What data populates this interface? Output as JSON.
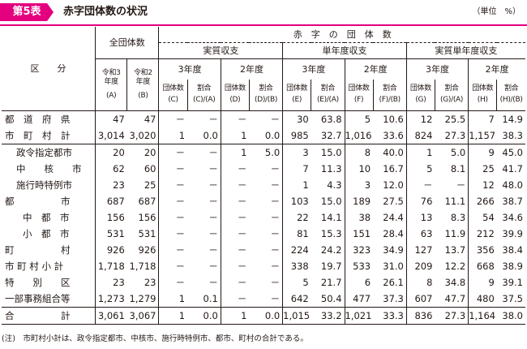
{
  "header": {
    "badge": "第5表",
    "title": "赤字団体数の状況",
    "unit": "（単位　%）"
  },
  "table": {
    "h_kubun": "区　　分",
    "h_all": "全団体数",
    "h_deficit": "赤　字　の　団　体　数",
    "h_jisshitsu": "実質収支",
    "h_tannendo": "単年度収支",
    "h_jisshitsu_tannendo": "実質単年度収支",
    "h_r3": "令和3年度",
    "h_r2": "令和2年度",
    "h_y3": "3年度",
    "h_y2": "2年度",
    "h_count": "団体数",
    "h_ratio": "割合",
    "col_codes": [
      "(A)",
      "(B)",
      "(C)",
      "(C)/(A)",
      "(D)",
      "(D)/(B)",
      "(E)",
      "(E)/(A)",
      "(F)",
      "(F)/(B)",
      "(G)",
      "(G)/(A)",
      "(H)",
      "(H)/(B)"
    ],
    "rows": [
      {
        "label": "都　道　府　県",
        "v": [
          "47",
          "47",
          "－",
          "－",
          "－",
          "－",
          "30",
          "63.8",
          "5",
          "10.6",
          "12",
          "25.5",
          "7",
          "14.9"
        ]
      },
      {
        "label": "市　町　村　計",
        "v": [
          "3,014",
          "3,020",
          "1",
          "0.0",
          "1",
          "0.0",
          "985",
          "32.7",
          "1,016",
          "33.6",
          "824",
          "27.3",
          "1,157",
          "38.3"
        ]
      },
      {
        "label": "政令指定都市",
        "v": [
          "20",
          "20",
          "－",
          "－",
          "1",
          "5.0",
          "3",
          "15.0",
          "8",
          "40.0",
          "1",
          "5.0",
          "9",
          "45.0"
        ]
      },
      {
        "label": "中　　核　　市",
        "v": [
          "62",
          "60",
          "－",
          "－",
          "－",
          "－",
          "7",
          "11.3",
          "10",
          "16.7",
          "5",
          "8.1",
          "25",
          "41.7"
        ]
      },
      {
        "label": "施行時特例市",
        "v": [
          "23",
          "25",
          "－",
          "－",
          "－",
          "－",
          "1",
          "4.3",
          "3",
          "12.0",
          "－",
          "－",
          "12",
          "48.0"
        ]
      },
      {
        "label": "都　　　　　市",
        "v": [
          "687",
          "687",
          "－",
          "－",
          "－",
          "－",
          "103",
          "15.0",
          "189",
          "27.5",
          "76",
          "11.1",
          "266",
          "38.7"
        ]
      },
      {
        "label": "中　都　市",
        "v": [
          "156",
          "156",
          "－",
          "－",
          "－",
          "－",
          "22",
          "14.1",
          "38",
          "24.4",
          "13",
          "8.3",
          "54",
          "34.6"
        ]
      },
      {
        "label": "小　都　市",
        "v": [
          "531",
          "531",
          "－",
          "－",
          "－",
          "－",
          "81",
          "15.3",
          "151",
          "28.4",
          "63",
          "11.9",
          "212",
          "39.9"
        ]
      },
      {
        "label": "町　　　　　村",
        "v": [
          "926",
          "926",
          "－",
          "－",
          "－",
          "－",
          "224",
          "24.2",
          "323",
          "34.9",
          "127",
          "13.7",
          "356",
          "38.4"
        ]
      },
      {
        "label": "市 町 村 小 計",
        "v": [
          "1,718",
          "1,718",
          "－",
          "－",
          "－",
          "－",
          "338",
          "19.7",
          "533",
          "31.0",
          "209",
          "12.2",
          "668",
          "38.9"
        ]
      },
      {
        "label": "特　　別　　区",
        "v": [
          "23",
          "23",
          "－",
          "－",
          "－",
          "－",
          "5",
          "21.7",
          "6",
          "26.1",
          "8",
          "34.8",
          "9",
          "39.1"
        ]
      },
      {
        "label": "一部事務組合等",
        "v": [
          "1,273",
          "1,279",
          "1",
          "0.1",
          "－",
          "－",
          "642",
          "50.4",
          "477",
          "37.3",
          "607",
          "47.7",
          "480",
          "37.5"
        ]
      },
      {
        "label": "合　　　　　計",
        "v": [
          "3,061",
          "3,067",
          "1",
          "0.0",
          "1",
          "0.0",
          "1,015",
          "33.2",
          "1,021",
          "33.3",
          "836",
          "27.3",
          "1,164",
          "38.0"
        ]
      }
    ]
  },
  "note": "(注)　市町村小計は、政令指定都市、中核市、施行時特例市、都市、町村の合計である。"
}
